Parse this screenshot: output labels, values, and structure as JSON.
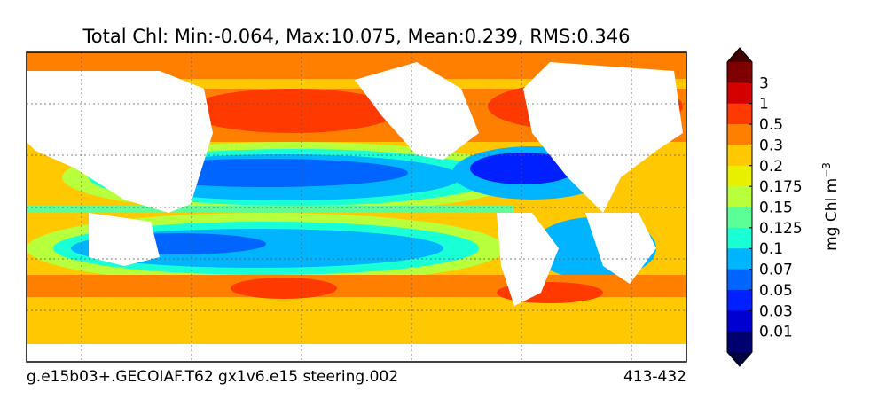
{
  "title": "Total Chl: Min:-0.064, Max:10.075, Mean:0.239, RMS:0.346",
  "footer": {
    "left": "g.e15b03+.GECOIAF.T62 gx1v6.e15 steering.002",
    "right": "413-432"
  },
  "colorbar": {
    "labels": [
      "3",
      "1",
      "0.5",
      "0.3",
      "0.2",
      "0.175",
      "0.15",
      "0.125",
      "0.1",
      "0.07",
      "0.05",
      "0.03",
      "0.01"
    ],
    "colors": [
      "#7f0000",
      "#d40000",
      "#ff3a00",
      "#ff8000",
      "#ffc800",
      "#e8f000",
      "#b8ff3c",
      "#5cff96",
      "#19ffd6",
      "#00b4ff",
      "#0064ff",
      "#0020ff",
      "#0000d0",
      "#00006e"
    ],
    "over_color": "#400000",
    "under_color": "#000040",
    "unit": "mg Chl m",
    "unit_exponent": "−3"
  }
}
